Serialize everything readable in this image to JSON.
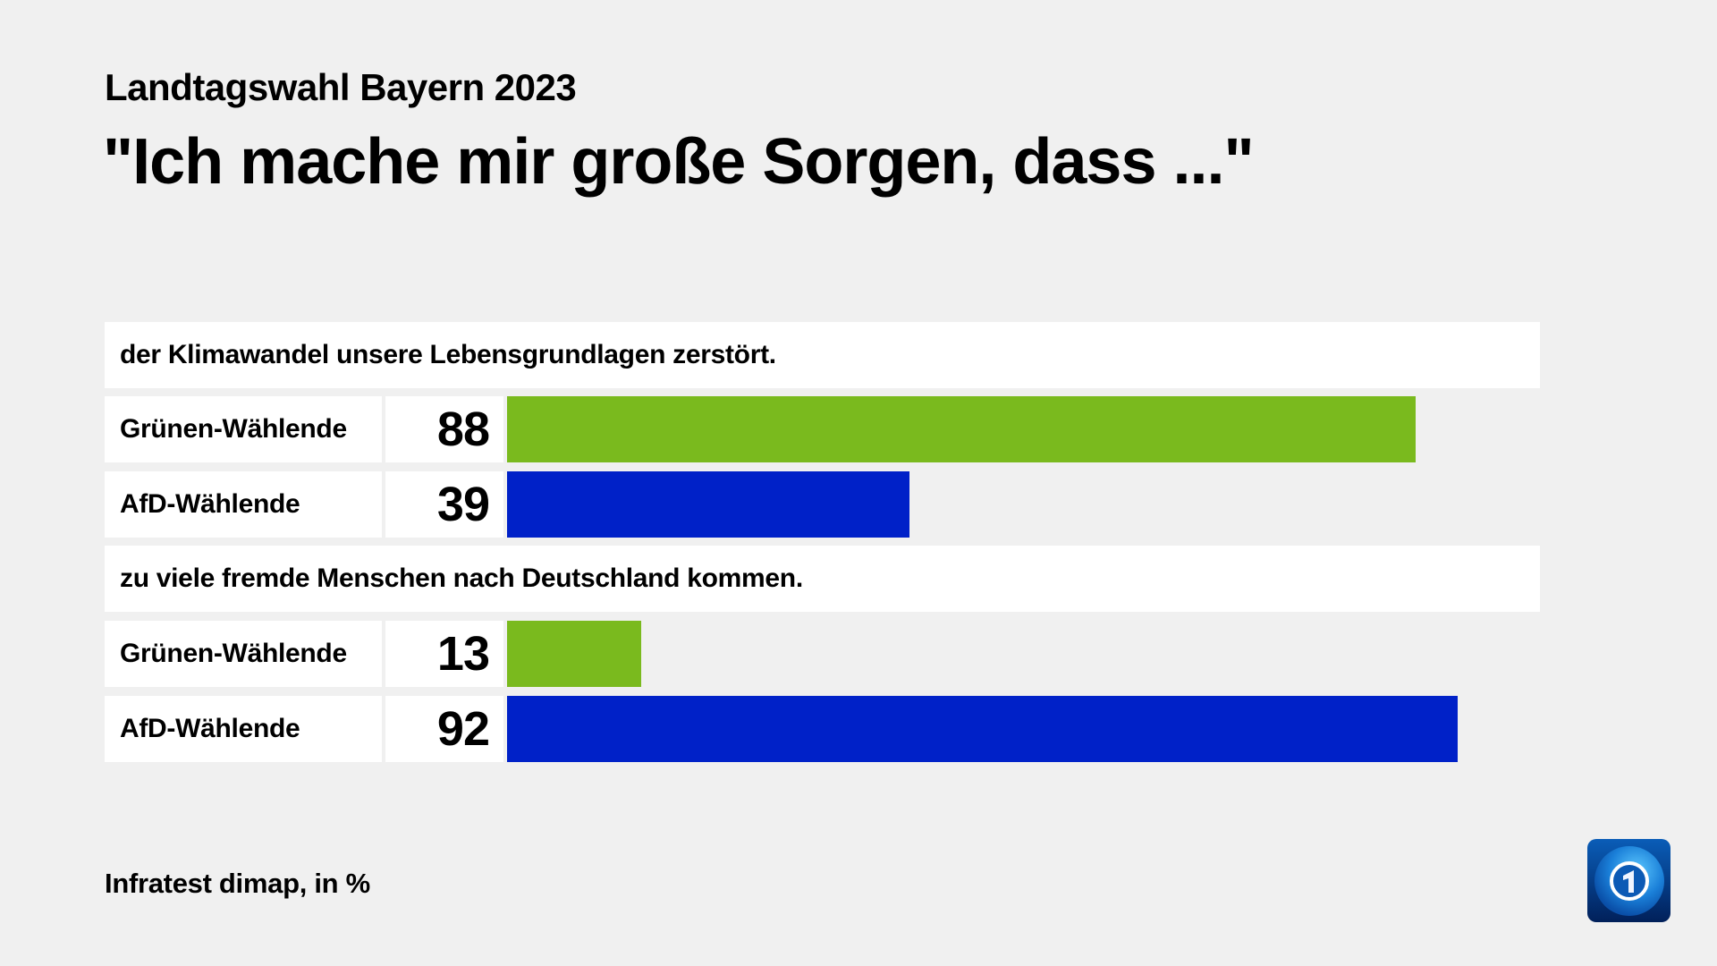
{
  "header": {
    "subtitle": "Landtagswahl Bayern 2023",
    "title": "\"Ich mache mir große Sorgen, dass ...\""
  },
  "chart_data": {
    "type": "bar",
    "orientation": "horizontal",
    "xlim": [
      0,
      100
    ],
    "unit": "%",
    "groups": [
      {
        "question": "der Klimawandel unsere Lebensgrundlagen zerstört.",
        "rows": [
          {
            "label": "Grünen-Wählende",
            "value": 88,
            "color": "#7aba1e"
          },
          {
            "label": "AfD-Wählende",
            "value": 39,
            "color": "#0021c8"
          }
        ]
      },
      {
        "question": "zu viele fremde Menschen nach Deutschland kommen.",
        "rows": [
          {
            "label": "Grünen-Wählende",
            "value": 13,
            "color": "#7aba1e"
          },
          {
            "label": "AfD-Wählende",
            "value": 92,
            "color": "#0021c8"
          }
        ]
      }
    ]
  },
  "footer": {
    "source": "Infratest dimap, in %"
  },
  "logo": {
    "name": "tagesschau-globe-1-logo",
    "text": "1"
  }
}
